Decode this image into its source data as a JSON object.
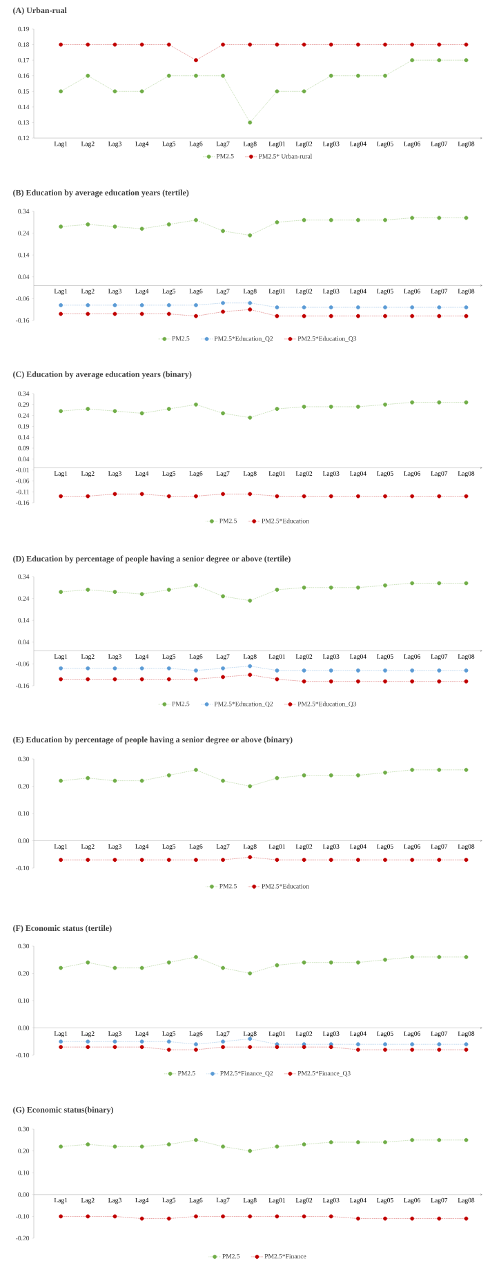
{
  "chart_data": [
    {
      "type": "line",
      "title": "(A) Urban-rual",
      "categories": [
        "Lag1",
        "Lag2",
        "Lag3",
        "Lag4",
        "Lag5",
        "Lag6",
        "Lag7",
        "Lag8",
        "Lag01",
        "Lag02",
        "Lag03",
        "Lag04",
        "Lag05",
        "Lag06",
        "Lag07",
        "Lag08"
      ],
      "series": [
        {
          "name": "PM2.5",
          "color": "#70ad47",
          "values": [
            0.15,
            0.16,
            0.15,
            0.15,
            0.16,
            0.16,
            0.16,
            0.13,
            0.15,
            0.15,
            0.16,
            0.16,
            0.16,
            0.17,
            0.17,
            0.17
          ]
        },
        {
          "name": "PM2.5* Urban-rural",
          "color": "#c00000",
          "values": [
            0.18,
            0.18,
            0.18,
            0.18,
            0.18,
            0.17,
            0.18,
            0.18,
            0.18,
            0.18,
            0.18,
            0.18,
            0.18,
            0.18,
            0.18,
            0.18
          ]
        }
      ],
      "ylim": [
        0.12,
        0.19
      ],
      "yticks": [
        0.12,
        0.13,
        0.14,
        0.15,
        0.16,
        0.17,
        0.18,
        0.19
      ],
      "legend": "bottom",
      "marker": "circle",
      "line_style": "dotted"
    },
    {
      "type": "line",
      "title": "(B) Education by average education years (tertile)",
      "categories": [
        "Lag1",
        "Lag2",
        "Lag3",
        "Lag4",
        "Lag5",
        "Lag6",
        "Lag7",
        "Lag8",
        "Lag01",
        "Lag02",
        "Lag03",
        "Lag04",
        "Lag05",
        "Lag06",
        "Lag07",
        "Lag08"
      ],
      "series": [
        {
          "name": "PM2.5",
          "color": "#70ad47",
          "values": [
            0.27,
            0.28,
            0.27,
            0.26,
            0.28,
            0.3,
            0.25,
            0.23,
            0.29,
            0.3,
            0.3,
            0.3,
            0.3,
            0.31,
            0.31,
            0.31
          ]
        },
        {
          "name": "PM2.5*Education_Q2",
          "color": "#5b9bd5",
          "values": [
            -0.09,
            -0.09,
            -0.09,
            -0.09,
            -0.09,
            -0.09,
            -0.08,
            -0.08,
            -0.1,
            -0.1,
            -0.1,
            -0.1,
            -0.1,
            -0.1,
            -0.1,
            -0.1
          ]
        },
        {
          "name": "PM2.5*Education_Q3",
          "color": "#c00000",
          "values": [
            -0.13,
            -0.13,
            -0.13,
            -0.13,
            -0.13,
            -0.14,
            -0.12,
            -0.11,
            -0.14,
            -0.14,
            -0.14,
            -0.14,
            -0.14,
            -0.14,
            -0.14,
            -0.14
          ]
        }
      ],
      "ylim": [
        -0.16,
        0.34
      ],
      "yticks": [
        -0.16,
        -0.06,
        0.04,
        0.14,
        0.24,
        0.34
      ],
      "legend": "bottom",
      "marker": "circle",
      "line_style": "dotted"
    },
    {
      "type": "line",
      "title": "(C) Education by average education years (binary)",
      "categories": [
        "Lag1",
        "Lag2",
        "Lag3",
        "Lag4",
        "Lag5",
        "Lag6",
        "Lag7",
        "Lag8",
        "Lag01",
        "Lag02",
        "Lag03",
        "Lag04",
        "Lag05",
        "Lag06",
        "Lag07",
        "Lag08"
      ],
      "series": [
        {
          "name": "PM2.5",
          "color": "#70ad47",
          "values": [
            0.26,
            0.27,
            0.26,
            0.25,
            0.27,
            0.29,
            0.25,
            0.23,
            0.27,
            0.28,
            0.28,
            0.28,
            0.29,
            0.3,
            0.3,
            0.3
          ]
        },
        {
          "name": "PM2.5*Education",
          "color": "#c00000",
          "values": [
            -0.13,
            -0.13,
            -0.12,
            -0.12,
            -0.13,
            -0.13,
            -0.12,
            -0.12,
            -0.13,
            -0.13,
            -0.13,
            -0.13,
            -0.13,
            -0.13,
            -0.13,
            -0.13
          ]
        }
      ],
      "ylim": [
        -0.16,
        0.34
      ],
      "yticks": [
        -0.16,
        -0.11,
        -0.06,
        -0.01,
        0.04,
        0.09,
        0.14,
        0.19,
        0.24,
        0.29,
        0.34
      ],
      "legend": "bottom",
      "marker": "circle",
      "line_style": "dotted"
    },
    {
      "type": "line",
      "title": "(D) Education by percentage of people having a senior degree or above (tertile)",
      "categories": [
        "Lag1",
        "Lag2",
        "Lag3",
        "Lag4",
        "Lag5",
        "Lag6",
        "Lag7",
        "Lag8",
        "Lag01",
        "Lag02",
        "Lag03",
        "Lag04",
        "Lag05",
        "Lag06",
        "Lag07",
        "Lag08"
      ],
      "series": [
        {
          "name": "PM2.5",
          "color": "#70ad47",
          "values": [
            0.27,
            0.28,
            0.27,
            0.26,
            0.28,
            0.3,
            0.25,
            0.23,
            0.28,
            0.29,
            0.29,
            0.29,
            0.3,
            0.31,
            0.31,
            0.31
          ]
        },
        {
          "name": "PM2.5*Education_Q2",
          "color": "#5b9bd5",
          "values": [
            -0.08,
            -0.08,
            -0.08,
            -0.08,
            -0.08,
            -0.09,
            -0.08,
            -0.07,
            -0.09,
            -0.09,
            -0.09,
            -0.09,
            -0.09,
            -0.09,
            -0.09,
            -0.09
          ]
        },
        {
          "name": "PM2.5*Education_Q3",
          "color": "#c00000",
          "values": [
            -0.13,
            -0.13,
            -0.13,
            -0.13,
            -0.13,
            -0.13,
            -0.12,
            -0.11,
            -0.13,
            -0.14,
            -0.14,
            -0.14,
            -0.14,
            -0.14,
            -0.14,
            -0.14
          ]
        }
      ],
      "ylim": [
        -0.16,
        0.34
      ],
      "yticks": [
        -0.16,
        -0.06,
        0.04,
        0.14,
        0.24,
        0.34
      ],
      "legend": "bottom",
      "marker": "circle",
      "line_style": "dotted"
    },
    {
      "type": "line",
      "title": "(E) Education by percentage of people having a senior degree or above (binary)",
      "categories": [
        "Lag1",
        "Lag2",
        "Lag3",
        "Lag4",
        "Lag5",
        "Lag6",
        "Lag7",
        "Lag8",
        "Lag01",
        "Lag02",
        "Lag03",
        "Lag04",
        "Lag05",
        "Lag06",
        "Lag07",
        "Lag08"
      ],
      "series": [
        {
          "name": "PM2.5",
          "color": "#70ad47",
          "values": [
            0.22,
            0.23,
            0.22,
            0.22,
            0.24,
            0.26,
            0.22,
            0.2,
            0.23,
            0.24,
            0.24,
            0.24,
            0.25,
            0.26,
            0.26,
            0.26
          ]
        },
        {
          "name": "PM2.5*Education",
          "color": "#c00000",
          "values": [
            -0.07,
            -0.07,
            -0.07,
            -0.07,
            -0.07,
            -0.07,
            -0.07,
            -0.06,
            -0.07,
            -0.07,
            -0.07,
            -0.07,
            -0.07,
            -0.07,
            -0.07,
            -0.07
          ]
        }
      ],
      "ylim": [
        -0.1,
        0.3
      ],
      "yticks": [
        {
          "value": -0.1,
          "label": "-0.10"
        },
        {
          "value": 0,
          "label": "0.00"
        },
        {
          "value": 0.1,
          "label": "0.10"
        },
        {
          "value": 0.2,
          "label": "0.20"
        },
        {
          "value": 0.3,
          "label": "0.30"
        }
      ],
      "legend": "bottom",
      "marker": "circle",
      "line_style": "dotted"
    },
    {
      "type": "line",
      "title": "(F) Economic status (tertile)",
      "categories": [
        "Lag1",
        "Lag2",
        "Lag3",
        "Lag4",
        "Lag5",
        "Lag6",
        "Lag7",
        "Lag8",
        "Lag01",
        "Lag02",
        "Lag03",
        "Lag04",
        "Lag05",
        "Lag06",
        "Lag07",
        "Lag08"
      ],
      "series": [
        {
          "name": "PM2.5",
          "color": "#70ad47",
          "values": [
            0.22,
            0.24,
            0.22,
            0.22,
            0.24,
            0.26,
            0.22,
            0.2,
            0.23,
            0.24,
            0.24,
            0.24,
            0.25,
            0.26,
            0.26,
            0.26
          ]
        },
        {
          "name": "PM2.5*Finance_Q2",
          "color": "#5b9bd5",
          "values": [
            -0.05,
            -0.05,
            -0.05,
            -0.05,
            -0.05,
            -0.06,
            -0.05,
            -0.04,
            -0.06,
            -0.06,
            -0.06,
            -0.06,
            -0.06,
            -0.06,
            -0.06,
            -0.06
          ]
        },
        {
          "name": "PM2.5*Finance_Q3",
          "color": "#c00000",
          "values": [
            -0.07,
            -0.07,
            -0.07,
            -0.07,
            -0.08,
            -0.08,
            -0.07,
            -0.07,
            -0.07,
            -0.07,
            -0.07,
            -0.08,
            -0.08,
            -0.08,
            -0.08,
            -0.08
          ]
        }
      ],
      "ylim": [
        -0.1,
        0.3
      ],
      "yticks": [
        {
          "value": -0.1,
          "label": "-0.10"
        },
        {
          "value": 0,
          "label": "0.00"
        },
        {
          "value": 0.1,
          "label": "0.10"
        },
        {
          "value": 0.2,
          "label": "0.20"
        },
        {
          "value": 0.3,
          "label": "0.30"
        }
      ],
      "legend": "bottom",
      "marker": "circle",
      "line_style": "dotted"
    },
    {
      "type": "line",
      "title": "(G)  Economic status(binary)",
      "categories": [
        "Lag1",
        "Lag2",
        "Lag3",
        "Lag4",
        "Lag5",
        "Lag6",
        "Lag7",
        "Lag8",
        "Lag01",
        "Lag02",
        "Lag03",
        "Lag04",
        "Lag05",
        "Lag06",
        "Lag07",
        "Lag08"
      ],
      "series": [
        {
          "name": "PM2.5",
          "color": "#70ad47",
          "values": [
            0.22,
            0.23,
            0.22,
            0.22,
            0.23,
            0.25,
            0.22,
            0.2,
            0.22,
            0.23,
            0.24,
            0.24,
            0.24,
            0.25,
            0.25,
            0.25
          ]
        },
        {
          "name": "PM2.5*Finance",
          "color": "#c00000",
          "values": [
            -0.1,
            -0.1,
            -0.1,
            -0.11,
            -0.11,
            -0.1,
            -0.1,
            -0.1,
            -0.1,
            -0.1,
            -0.1,
            -0.11,
            -0.11,
            -0.11,
            -0.11,
            -0.11
          ]
        }
      ],
      "ylim": [
        -0.2,
        0.3
      ],
      "yticks": [
        {
          "value": -0.2,
          "label": "-0.20"
        },
        {
          "value": -0.1,
          "label": "-0.10"
        },
        {
          "value": 0,
          "label": "0.00"
        },
        {
          "value": 0.1,
          "label": "0.10"
        },
        {
          "value": 0.2,
          "label": "0.20"
        },
        {
          "value": 0.3,
          "label": "0.30"
        }
      ],
      "legend": "bottom",
      "marker": "circle",
      "line_style": "dotted"
    }
  ]
}
